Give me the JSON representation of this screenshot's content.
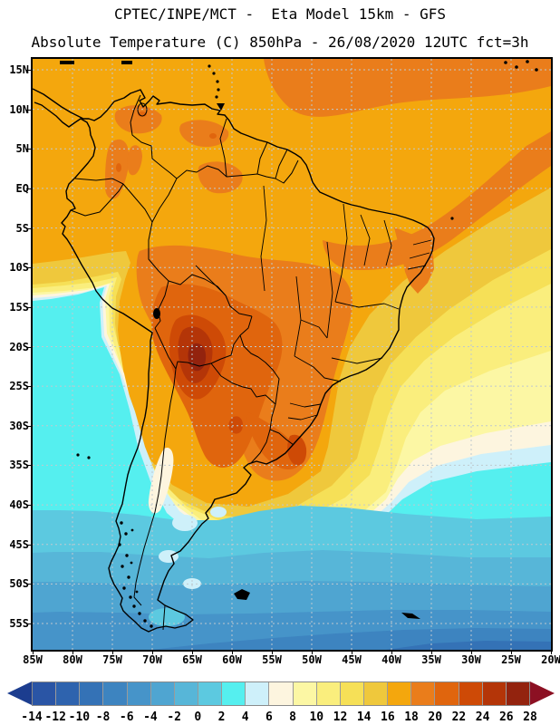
{
  "title_line1": "CPTEC/INPE/MCT -  Eta Model 15km - GFS",
  "title_line2": "Absolute Temperature (C) 850hPa - 26/08/2020 12UTC fct=3h",
  "map": {
    "lat_ticks": [
      "15N",
      "10N",
      "5N",
      "EQ",
      "5S",
      "10S",
      "15S",
      "20S",
      "25S",
      "30S",
      "35S",
      "40S",
      "45S",
      "50S",
      "55S"
    ],
    "lon_ticks": [
      "85W",
      "80W",
      "75W",
      "70W",
      "65W",
      "60W",
      "55W",
      "50W",
      "45W",
      "40W",
      "35W",
      "30W",
      "25W",
      "20W"
    ],
    "grid_color": "#BFC9CF",
    "frame_color": "#000000",
    "coastline_color": "#000000"
  },
  "colorbar": {
    "tick_labels": [
      "-14",
      "-12",
      "-10",
      "-8",
      "-6",
      "-4",
      "-2",
      "0",
      "2",
      "4",
      "6",
      "8",
      "10",
      "12",
      "14",
      "16",
      "18",
      "20",
      "22",
      "24",
      "26",
      "28"
    ],
    "cell_colors": [
      "#2A55A5",
      "#2E63AE",
      "#3472B6",
      "#3D84C0",
      "#4694C9",
      "#4FA5D1",
      "#57B6D8",
      "#5CC9E0",
      "#55EFEF",
      "#CEF0FA",
      "#FDF5DF",
      "#FCF7A4",
      "#FAEE7D",
      "#F6E057",
      "#EFC83C",
      "#F4A70D",
      "#EA7D1B",
      "#E0650D",
      "#CE4A06",
      "#B43508",
      "#93230E"
    ],
    "left_arrow_color": "#1C3D8F",
    "right_arrow_color": "#8C1023",
    "units": "C"
  },
  "chart_data": {
    "type": "heatmap",
    "title": "CPTEC/INPE/MCT - Eta Model 15km - GFS",
    "subtitle": "Absolute Temperature (C) 850hPa - 26/08/2020 12UTC fct=3h",
    "source": "CPTEC/INPE/MCT",
    "model": "Eta Model 15km",
    "boundary_condition": "GFS",
    "variable": "Absolute Temperature",
    "units": "C",
    "level": "850hPa",
    "valid_datetime": "26/08/2020 12UTC",
    "forecast": "fct=3h",
    "xlabel": "",
    "ylabel": "",
    "x_ticks": [
      "85W",
      "80W",
      "75W",
      "70W",
      "65W",
      "60W",
      "55W",
      "50W",
      "45W",
      "40W",
      "35W",
      "30W",
      "25W",
      "20W"
    ],
    "y_ticks": [
      "15N",
      "10N",
      "5N",
      "EQ",
      "5S",
      "10S",
      "15S",
      "20S",
      "25S",
      "30S",
      "35S",
      "40S",
      "45S",
      "50S",
      "55S"
    ],
    "grid": true,
    "legend_position": "bottom",
    "colorbar_ticks": [
      -14,
      -12,
      -10,
      -8,
      -6,
      -4,
      -2,
      0,
      2,
      4,
      6,
      8,
      10,
      12,
      14,
      16,
      18,
      20,
      22,
      24,
      26,
      28
    ],
    "colorbar_colors": [
      "#2A55A5",
      "#2E63AE",
      "#3472B6",
      "#3D84C0",
      "#4694C9",
      "#4FA5D1",
      "#57B6D8",
      "#5CC9E0",
      "#55EFEF",
      "#CEF0FA",
      "#FDF5DF",
      "#FCF7A4",
      "#FAEE7D",
      "#F6E057",
      "#EFC83C",
      "#F4A70D",
      "#EA7D1B",
      "#E0650D",
      "#CE4A06",
      "#B43508",
      "#93230E"
    ],
    "estimated_grid_values_C": {
      "lons_deg_west": [
        85,
        80,
        75,
        70,
        65,
        60,
        55,
        50,
        45,
        40,
        35,
        30,
        25,
        20
      ],
      "lats_deg": [
        15,
        10,
        5,
        0,
        -5,
        -10,
        -15,
        -20,
        -25,
        -30,
        -35,
        -40,
        -45,
        -50,
        -55
      ],
      "grid": [
        [
          17,
          17,
          17,
          17,
          17,
          18,
          18,
          19,
          18,
          17,
          17,
          17,
          17,
          18
        ],
        [
          17,
          18,
          19,
          18,
          17,
          19,
          18,
          17,
          17,
          17,
          17,
          17,
          18,
          18
        ],
        [
          17,
          17,
          18,
          17,
          17,
          17,
          17,
          17,
          17,
          17,
          17,
          17,
          17,
          17
        ],
        [
          16,
          17,
          17,
          17,
          17,
          17,
          17,
          17,
          17,
          16,
          15,
          15,
          16,
          16
        ],
        [
          14,
          16,
          17,
          17,
          17,
          17,
          17,
          18,
          19,
          19,
          18,
          17,
          17,
          17
        ],
        [
          10,
          13,
          17,
          18,
          19,
          18,
          18,
          17,
          16,
          15,
          14,
          14,
          15,
          16
        ],
        [
          6,
          8,
          14,
          19,
          21,
          19,
          19,
          17,
          15,
          13,
          12,
          12,
          13,
          14
        ],
        [
          4,
          4,
          8,
          21,
          25,
          23,
          21,
          17,
          14,
          11,
          10,
          10,
          11,
          13
        ],
        [
          3,
          3,
          5,
          16,
          23,
          23,
          21,
          19,
          13,
          10,
          9,
          8,
          9,
          11
        ],
        [
          3,
          3,
          3,
          8,
          16,
          19,
          21,
          17,
          9,
          7,
          5,
          5,
          7,
          9
        ],
        [
          3,
          3,
          3,
          4,
          8,
          11,
          13,
          9,
          5,
          4,
          3,
          3,
          3,
          5
        ],
        [
          3,
          3,
          3,
          3,
          5,
          5,
          5,
          4,
          3,
          3,
          2,
          1,
          1,
          3
        ],
        [
          1,
          1,
          1,
          2,
          3,
          3,
          3,
          3,
          1,
          1,
          0,
          -1,
          -1,
          -1
        ],
        [
          -1,
          -1,
          -1,
          -1,
          1,
          1,
          1,
          0,
          -1,
          -3,
          -3,
          -4,
          -5,
          -5
        ],
        [
          -3,
          -3,
          -3,
          -3,
          -2,
          -1,
          -1,
          -3,
          -5,
          -6,
          -7,
          -8,
          -9,
          -9
        ]
      ],
      "hot_core": {
        "approx_location": "SE Bolivia / N Argentina (63W, 20S)",
        "max_bin_C": "26-28"
      },
      "cold_core": {
        "approx_location": "South Atlantic SE corner (25W, 57S)",
        "min_bin_C": "-10--8"
      }
    }
  }
}
